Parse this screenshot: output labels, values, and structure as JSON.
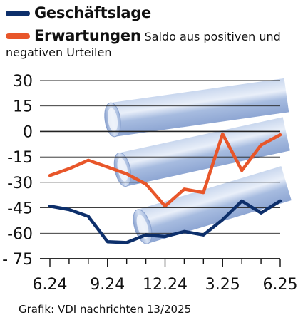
{
  "legend": {
    "series1": "Geschäftslage",
    "series2": "Erwartungen",
    "subtitle_part1": "Saldo aus positiven und",
    "subtitle_part2": "negativen Urteilen"
  },
  "credit": "Grafik: VDI nachrichten 13/2025",
  "colors": {
    "geschaeftslage": "#0d2f6b",
    "erwartungen": "#e8562a",
    "pipe": "#a9bee0"
  },
  "chart_data": {
    "type": "line",
    "x": [
      "6.24",
      "7.24",
      "8.24",
      "9.24",
      "10.24",
      "11.24",
      "12.24",
      "1.25",
      "2.25",
      "3.25",
      "4.25",
      "5.25",
      "6.25"
    ],
    "x_tick_labels": [
      "6.24",
      "9.24",
      "12.24",
      "3.25",
      "6.25"
    ],
    "y_tick_labels": [
      "30",
      "15",
      "0",
      "-15",
      "-30",
      "-45",
      "-60",
      "- 75"
    ],
    "ylim": [
      -75,
      30
    ],
    "series": [
      {
        "name": "Geschäftslage",
        "values": [
          -44,
          -46,
          -50,
          -65,
          -65.5,
          -61,
          -62,
          -59,
          -61,
          -52,
          -41,
          -48,
          -41
        ]
      },
      {
        "name": "Erwartungen",
        "values": [
          -26,
          -22,
          -17,
          -21,
          -25,
          -31,
          -44,
          -34,
          -36,
          -1.5,
          -23,
          -8,
          -2
        ]
      }
    ]
  }
}
